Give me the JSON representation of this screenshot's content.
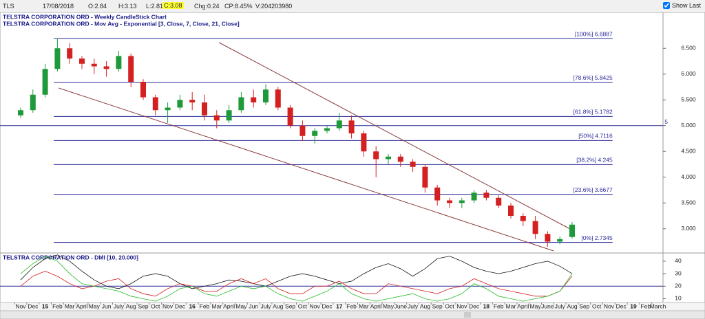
{
  "toolbar": {
    "symbol": "TLS",
    "date": "17/08/2018",
    "open": "O:2.84",
    "high": "H:3.13",
    "low": "L:2.81",
    "close": "C:3.08",
    "change": "Chg:0.24",
    "change_pct": "CP:8.45%",
    "volume": "V:204203980",
    "show_last": "Show Last"
  },
  "chart_data": [
    {
      "type": "candlestick",
      "title": "TELSTRA CORPORATION ORD - Weekly CandleStick Chart",
      "subtitle": "TELSTRA CORPORATION ORD - Mov Avg - Exponential [3, Close, 7, Close, 21, Close]",
      "categories": [
        "Nov",
        "Dec",
        "15",
        "Feb",
        "Mar",
        "April",
        "May",
        "Jun",
        "July",
        "Aug",
        "Sep",
        "Oct",
        "Nov",
        "Dec",
        "16",
        "Feb",
        "Mar",
        "April",
        "May",
        "Jun",
        "July",
        "Aug",
        "Sep",
        "Oct",
        "Nov",
        "Dec",
        "17",
        "Feb",
        "Mar",
        "April",
        "May",
        "June",
        "July",
        "Aug",
        "Sep",
        "Oct",
        "Nov",
        "Dec",
        "18",
        "Feb",
        "Mar",
        "April",
        "May",
        "June",
        "July",
        "Aug",
        "Sep",
        "Oct",
        "Nov",
        "Dec",
        "19",
        "Feb",
        "March"
      ],
      "open": [
        5.2,
        5.3,
        5.6,
        6.1,
        6.5,
        6.3,
        6.2,
        6.15,
        6.1,
        6.35,
        5.85,
        5.55,
        5.3,
        5.35,
        5.5,
        5.45,
        5.2,
        5.1,
        5.3,
        5.55,
        5.45,
        5.7,
        5.35,
        5.0,
        4.8,
        4.9,
        4.95,
        5.1,
        4.85,
        4.5,
        4.35,
        4.4,
        4.3,
        4.2,
        3.8,
        3.55,
        3.5,
        3.55,
        3.7,
        3.6,
        3.45,
        3.25,
        3.15,
        2.9,
        2.75,
        2.84,
        null,
        null,
        null,
        null,
        null,
        null,
        null
      ],
      "high": [
        5.35,
        5.7,
        6.2,
        6.69,
        6.6,
        6.35,
        6.3,
        6.25,
        6.45,
        6.4,
        5.9,
        5.6,
        5.45,
        5.6,
        5.65,
        5.6,
        5.3,
        5.4,
        5.65,
        5.7,
        5.8,
        5.75,
        5.4,
        5.1,
        4.95,
        5.0,
        5.25,
        5.2,
        4.9,
        4.6,
        4.45,
        4.45,
        4.35,
        4.25,
        3.85,
        3.6,
        3.6,
        3.75,
        3.75,
        3.65,
        3.5,
        3.3,
        3.25,
        2.95,
        2.85,
        3.13,
        null,
        null,
        null,
        null,
        null,
        null,
        null
      ],
      "low": [
        5.15,
        5.25,
        5.55,
        6.05,
        6.2,
        6.1,
        6.0,
        5.95,
        6.05,
        5.75,
        5.5,
        5.2,
        5.05,
        5.3,
        5.3,
        5.1,
        4.95,
        5.05,
        5.25,
        5.35,
        5.4,
        5.3,
        4.95,
        4.7,
        4.65,
        4.85,
        4.9,
        4.75,
        4.4,
        4.0,
        4.25,
        4.2,
        4.1,
        3.7,
        3.45,
        3.4,
        3.4,
        3.5,
        3.55,
        3.4,
        3.2,
        3.05,
        2.8,
        2.65,
        2.7,
        2.81,
        null,
        null,
        null,
        null,
        null,
        null,
        null
      ],
      "close": [
        5.3,
        5.6,
        6.1,
        6.5,
        6.3,
        6.2,
        6.15,
        6.1,
        6.35,
        5.85,
        5.55,
        5.3,
        5.35,
        5.5,
        5.45,
        5.2,
        5.1,
        5.3,
        5.55,
        5.45,
        5.7,
        5.35,
        5.0,
        4.8,
        4.9,
        4.95,
        5.1,
        4.85,
        4.5,
        4.35,
        4.4,
        4.3,
        4.2,
        3.8,
        3.55,
        3.5,
        3.55,
        3.7,
        3.6,
        3.45,
        3.25,
        3.15,
        2.9,
        2.75,
        2.8,
        3.08,
        null,
        null,
        null,
        null,
        null,
        null,
        null
      ],
      "up_color": "#1f9a3a",
      "down_color": "#d42020",
      "ylim": [
        2.57,
        7.17
      ],
      "yticks": [
        {
          "value": 3,
          "label": "3.000"
        },
        {
          "value": 3.5,
          "label": "3.500"
        },
        {
          "value": 4,
          "label": "4.000"
        },
        {
          "value": 4.5,
          "label": "4.500"
        },
        {
          "value": 5,
          "label": "5.000"
        },
        {
          "value": 5.5,
          "label": "5.500"
        },
        {
          "value": 6,
          "label": "6.000"
        },
        {
          "value": 6.5,
          "label": "6.500"
        }
      ],
      "fib_levels": [
        {
          "value": 6.6887,
          "label": "[100%] 6.6887"
        },
        {
          "value": 5.8425,
          "label": "[78.6%] 5.8425"
        },
        {
          "value": 5.1782,
          "label": "[61.8%] 5.1782"
        },
        {
          "value": 4.7116,
          "label": "[50%] 4.7116"
        },
        {
          "value": 4.245,
          "label": "[38.2%] 4.245"
        },
        {
          "value": 3.6677,
          "label": "[23.6%] 3.6677"
        },
        {
          "value": 2.7345,
          "label": "[0%] 2.7345"
        }
      ],
      "fib_color": "#2a2a9a",
      "hline": 5,
      "trendlines": [
        {
          "x": [
            16.2,
            45.2
          ],
          "y": [
            6.61,
            2.95
          ]
        },
        {
          "x": [
            3.1,
            43.5
          ],
          "y": [
            5.73,
            2.57
          ]
        }
      ],
      "trend_color": "#8b3a3a"
    },
    {
      "type": "line",
      "title": "TELSTRA CORPORATION ORD - DMI [10, 20.000]",
      "series": [
        {
          "color": "#111111",
          "values": [
            25,
            35,
            42,
            45,
            40,
            32,
            25,
            20,
            18,
            22,
            28,
            30,
            28,
            22,
            18,
            20,
            22,
            25,
            24,
            22,
            20,
            24,
            28,
            30,
            28,
            25,
            22,
            24,
            30,
            35,
            38,
            34,
            28,
            34,
            42,
            44,
            40,
            35,
            32,
            30,
            32,
            35,
            38,
            40,
            36,
            30
          ]
        },
        {
          "color": "#d42020",
          "values": [
            20,
            28,
            32,
            28,
            22,
            18,
            20,
            24,
            26,
            18,
            14,
            12,
            18,
            22,
            20,
            16,
            16,
            22,
            26,
            22,
            26,
            18,
            14,
            14,
            20,
            20,
            24,
            18,
            14,
            14,
            22,
            20,
            18,
            16,
            14,
            18,
            20,
            26,
            22,
            18,
            16,
            14,
            12,
            12,
            16,
            28
          ]
        },
        {
          "color": "#22bb22",
          "values": [
            30,
            38,
            44,
            40,
            30,
            22,
            20,
            18,
            16,
            12,
            10,
            8,
            12,
            18,
            20,
            14,
            12,
            16,
            20,
            18,
            20,
            14,
            10,
            8,
            12,
            16,
            22,
            14,
            10,
            8,
            10,
            12,
            14,
            10,
            8,
            10,
            14,
            22,
            18,
            12,
            10,
            8,
            10,
            12,
            16,
            30
          ]
        }
      ],
      "ylim": [
        7.5,
        46
      ],
      "yticks": [
        10,
        20,
        30,
        40
      ],
      "grid_line": 20
    }
  ]
}
